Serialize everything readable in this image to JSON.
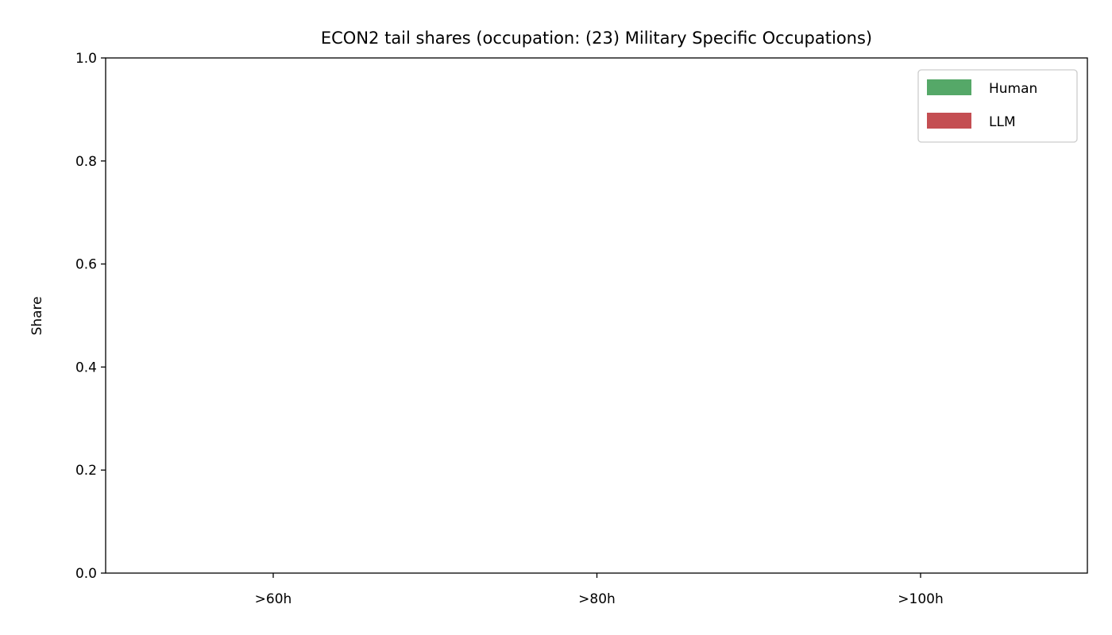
{
  "chart_data": {
    "type": "bar",
    "title": "ECON2 tail shares (occupation: (23) Military Specific Occupations)",
    "xlabel": "",
    "ylabel": "Share",
    "categories": [
      ">60h",
      ">80h",
      ">100h"
    ],
    "series": [
      {
        "name": "Human",
        "color": "#55a868",
        "values": [
          0,
          0,
          0
        ]
      },
      {
        "name": "LLM",
        "color": "#c44e52",
        "values": [
          0,
          0,
          0
        ]
      }
    ],
    "ylim": [
      0,
      1
    ],
    "yticks": [
      "0.0",
      "0.2",
      "0.4",
      "0.6",
      "0.8",
      "1.0"
    ],
    "ytick_values": [
      0,
      0.2,
      0.4,
      0.6,
      0.8,
      1.0
    ],
    "grid": false,
    "legend_position": "top-right"
  }
}
